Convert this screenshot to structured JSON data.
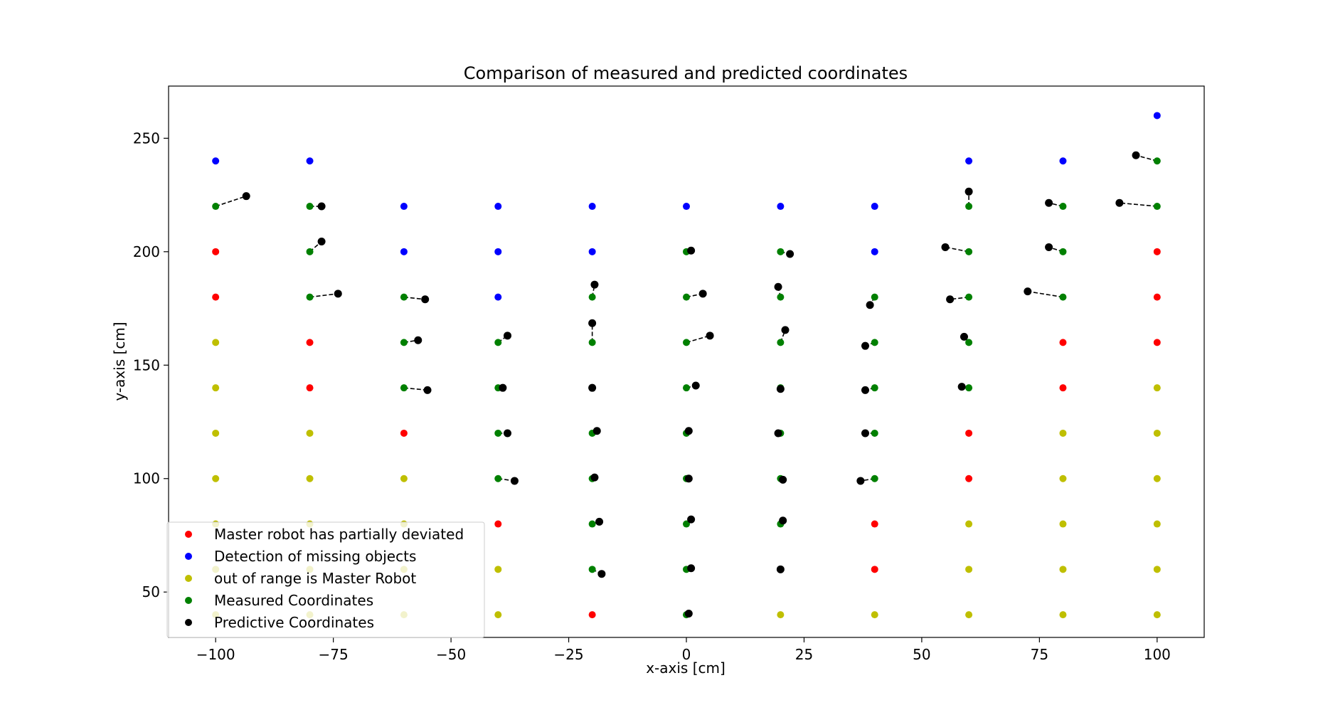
{
  "chart_data": {
    "type": "scatter",
    "title": "Comparison of measured and predicted coordinates",
    "xlabel": "x-axis [cm]",
    "ylabel": "y-axis [cm]",
    "xlim": [
      -110,
      110
    ],
    "ylim": [
      30,
      273
    ],
    "xticks": [
      -100,
      -75,
      -50,
      -25,
      0,
      25,
      50,
      75,
      100
    ],
    "yticks": [
      50,
      100,
      150,
      200,
      250
    ],
    "grid": false,
    "legend_position": "lower-left",
    "series": [
      {
        "name": "Master robot has partially deviated",
        "color": "#ff0000",
        "points": [
          [
            -100,
            200
          ],
          [
            -100,
            180
          ],
          [
            -80,
            160
          ],
          [
            -80,
            140
          ],
          [
            -60,
            120
          ],
          [
            -40,
            80
          ],
          [
            -20,
            40
          ],
          [
            40,
            80
          ],
          [
            40,
            60
          ],
          [
            60,
            120
          ],
          [
            60,
            100
          ],
          [
            80,
            160
          ],
          [
            80,
            140
          ],
          [
            100,
            200
          ],
          [
            100,
            180
          ],
          [
            100,
            160
          ]
        ]
      },
      {
        "name": "Detection of missing objects",
        "color": "#0000ff",
        "points": [
          [
            -100,
            240
          ],
          [
            -80,
            240
          ],
          [
            -60,
            220
          ],
          [
            -60,
            200
          ],
          [
            -40,
            220
          ],
          [
            -40,
            200
          ],
          [
            -40,
            180
          ],
          [
            -20,
            220
          ],
          [
            -20,
            200
          ],
          [
            0,
            220
          ],
          [
            20,
            220
          ],
          [
            40,
            220
          ],
          [
            40,
            200
          ],
          [
            60,
            240
          ],
          [
            80,
            240
          ],
          [
            100,
            260
          ]
        ]
      },
      {
        "name": "out of range is Master Robot",
        "color": "#bfbf00",
        "points": [
          [
            -100,
            160
          ],
          [
            -100,
            140
          ],
          [
            -100,
            120
          ],
          [
            -100,
            100
          ],
          [
            -100,
            80
          ],
          [
            -100,
            60
          ],
          [
            -100,
            40
          ],
          [
            -80,
            120
          ],
          [
            -80,
            100
          ],
          [
            -80,
            80
          ],
          [
            -80,
            60
          ],
          [
            -80,
            40
          ],
          [
            -60,
            100
          ],
          [
            -60,
            80
          ],
          [
            -60,
            60
          ],
          [
            -60,
            40
          ],
          [
            -40,
            60
          ],
          [
            -40,
            40
          ],
          [
            20,
            40
          ],
          [
            40,
            40
          ],
          [
            60,
            80
          ],
          [
            60,
            60
          ],
          [
            60,
            40
          ],
          [
            80,
            120
          ],
          [
            80,
            100
          ],
          [
            80,
            80
          ],
          [
            80,
            60
          ],
          [
            80,
            40
          ],
          [
            100,
            140
          ],
          [
            100,
            120
          ],
          [
            100,
            100
          ],
          [
            100,
            80
          ],
          [
            100,
            60
          ],
          [
            100,
            40
          ]
        ]
      },
      {
        "name": "Measured Coordinates",
        "color": "#008000",
        "points": [
          [
            -100,
            220
          ],
          [
            -80,
            220
          ],
          [
            -80,
            200
          ],
          [
            -80,
            180
          ],
          [
            -60,
            180
          ],
          [
            -60,
            160
          ],
          [
            -60,
            140
          ],
          [
            -40,
            160
          ],
          [
            -40,
            140
          ],
          [
            -40,
            120
          ],
          [
            -40,
            100
          ],
          [
            -20,
            180
          ],
          [
            -20,
            160
          ],
          [
            -20,
            140
          ],
          [
            -20,
            120
          ],
          [
            -20,
            100
          ],
          [
            -20,
            80
          ],
          [
            -20,
            60
          ],
          [
            0,
            200
          ],
          [
            0,
            180
          ],
          [
            0,
            160
          ],
          [
            0,
            140
          ],
          [
            0,
            120
          ],
          [
            0,
            100
          ],
          [
            0,
            80
          ],
          [
            0,
            60
          ],
          [
            0,
            40
          ],
          [
            20,
            200
          ],
          [
            20,
            180
          ],
          [
            20,
            160
          ],
          [
            20,
            140
          ],
          [
            20,
            120
          ],
          [
            20,
            100
          ],
          [
            20,
            80
          ],
          [
            20,
            60
          ],
          [
            40,
            180
          ],
          [
            40,
            160
          ],
          [
            40,
            140
          ],
          [
            40,
            120
          ],
          [
            40,
            100
          ],
          [
            60,
            220
          ],
          [
            60,
            200
          ],
          [
            60,
            180
          ],
          [
            60,
            160
          ],
          [
            60,
            140
          ],
          [
            80,
            220
          ],
          [
            80,
            200
          ],
          [
            80,
            180
          ],
          [
            100,
            240
          ],
          [
            100,
            220
          ]
        ]
      },
      {
        "name": "Predictive Coordinates",
        "color": "#000000",
        "points": [
          [
            -93.5,
            224.5
          ],
          [
            -77.5,
            220
          ],
          [
            -77.5,
            204.5
          ],
          [
            -74,
            181.5
          ],
          [
            -55.5,
            179
          ],
          [
            -57,
            161
          ],
          [
            -55,
            139
          ],
          [
            -38,
            163
          ],
          [
            -39,
            140
          ],
          [
            -38,
            120
          ],
          [
            -36.5,
            99
          ],
          [
            -19.5,
            185.5
          ],
          [
            -20,
            168.5
          ],
          [
            -20,
            140
          ],
          [
            -19,
            121
          ],
          [
            -19.5,
            100.5
          ],
          [
            -18.5,
            81
          ],
          [
            -18,
            58
          ],
          [
            1,
            200.5
          ],
          [
            3.5,
            181.5
          ],
          [
            5,
            163
          ],
          [
            2,
            141
          ],
          [
            0.5,
            121
          ],
          [
            0.5,
            100
          ],
          [
            1,
            82
          ],
          [
            1,
            60.5
          ],
          [
            0.5,
            40.5
          ],
          [
            22,
            199
          ],
          [
            19.5,
            184.5
          ],
          [
            21,
            165.5
          ],
          [
            20,
            139.5
          ],
          [
            19.5,
            120
          ],
          [
            20.5,
            99.5
          ],
          [
            20.5,
            81.5
          ],
          [
            20,
            60
          ],
          [
            39,
            176.5
          ],
          [
            38,
            158.5
          ],
          [
            38,
            139
          ],
          [
            38,
            120
          ],
          [
            37,
            99
          ],
          [
            60,
            226.5
          ],
          [
            55,
            202
          ],
          [
            56,
            179
          ],
          [
            59,
            162.5
          ],
          [
            58.5,
            140.5
          ],
          [
            77,
            221.5
          ],
          [
            77,
            202
          ],
          [
            72.5,
            182.5
          ],
          [
            95.5,
            242.5
          ],
          [
            92,
            221.5
          ]
        ]
      }
    ]
  }
}
